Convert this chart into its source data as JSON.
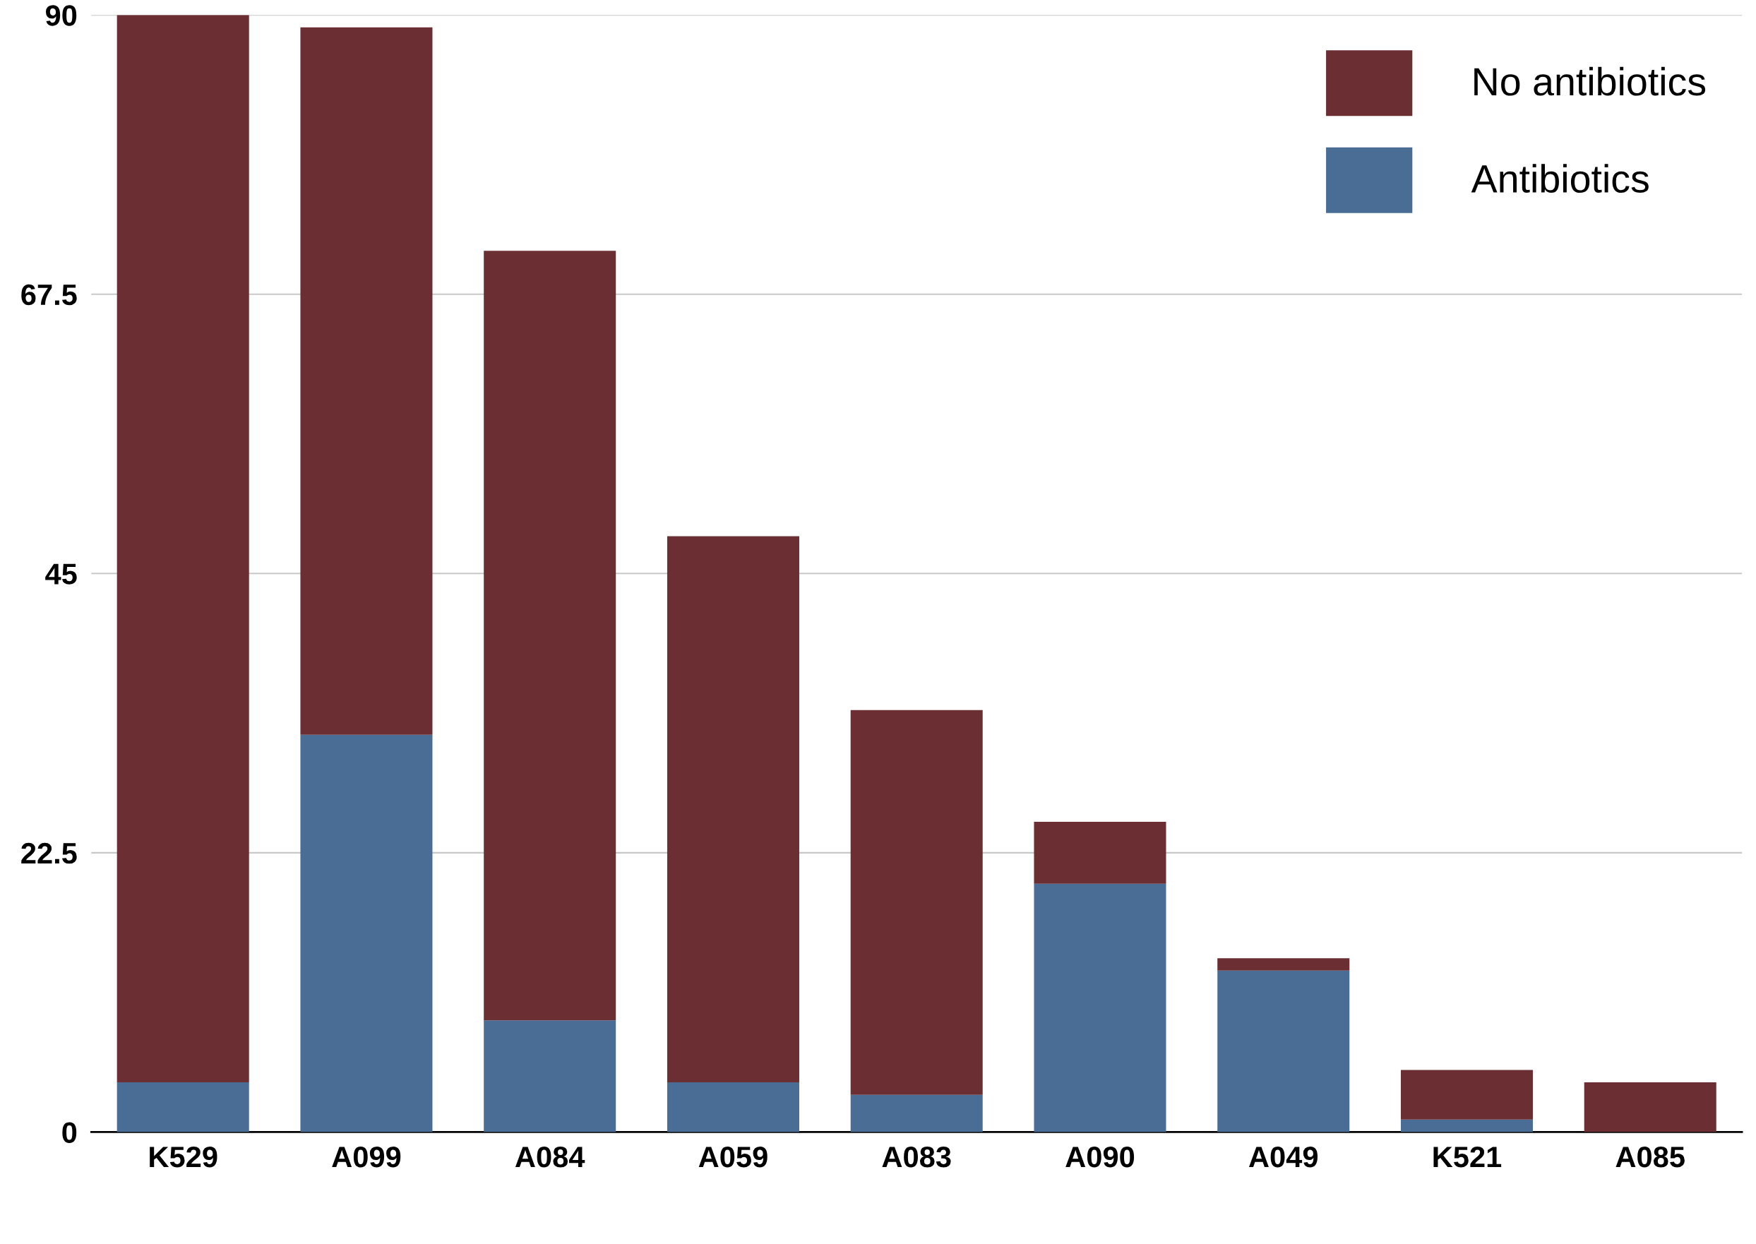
{
  "chart_data": {
    "type": "bar",
    "stacked": true,
    "categories": [
      "K529",
      "A099",
      "A084",
      "A059",
      "A083",
      "A090",
      "A049",
      "K521",
      "A085"
    ],
    "series": [
      {
        "name": "Antibiotics",
        "color": "#4a6d96",
        "values": [
          4,
          32,
          9,
          4,
          3,
          20,
          13,
          1,
          0
        ]
      },
      {
        "name": "No antibiotics",
        "color": "#6b2e33",
        "values": [
          86,
          57,
          62,
          44,
          31,
          5,
          1,
          4,
          4
        ]
      }
    ],
    "ylim": [
      0,
      90
    ],
    "yticks": [
      0,
      22.5,
      45,
      67.5,
      90
    ],
    "grid": "y",
    "legend": "top right"
  }
}
